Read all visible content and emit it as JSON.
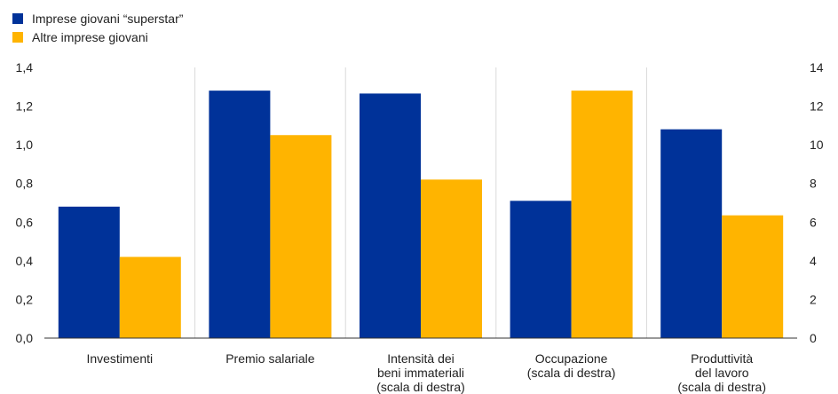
{
  "chart_data": {
    "type": "bar",
    "title": "",
    "xlabel": "",
    "ylabel": "",
    "categories": [
      [
        "Investimenti"
      ],
      [
        "Premio salariale"
      ],
      [
        "Intensità dei",
        "beni immateriali",
        "(scala di destra)"
      ],
      [
        "Occupazione",
        "(scala di destra)"
      ],
      [
        "Produttività",
        "del lavoro",
        "(scala di destra)"
      ]
    ],
    "axis_per_category": [
      "left",
      "left",
      "right",
      "right",
      "right"
    ],
    "series": [
      {
        "name": "Imprese giovani “superstar”",
        "color": "#003299",
        "values": [
          0.68,
          1.28,
          12.65,
          7.1,
          10.8
        ]
      },
      {
        "name": "Altre imprese giovani",
        "color": "#FFB400",
        "values": [
          0.42,
          1.05,
          8.2,
          12.8,
          6.35
        ]
      }
    ],
    "y_left": {
      "ylim": [
        0,
        1.4
      ],
      "ticks": [
        "0,0",
        "0,2",
        "0,4",
        "0,6",
        "0,8",
        "1,0",
        "1,2",
        "1,4"
      ]
    },
    "y_right": {
      "ylim": [
        0,
        14
      ],
      "ticks": [
        "0",
        "2",
        "4",
        "6",
        "8",
        "10",
        "12",
        "14"
      ]
    },
    "grid": false,
    "legend_position": "top-left"
  }
}
